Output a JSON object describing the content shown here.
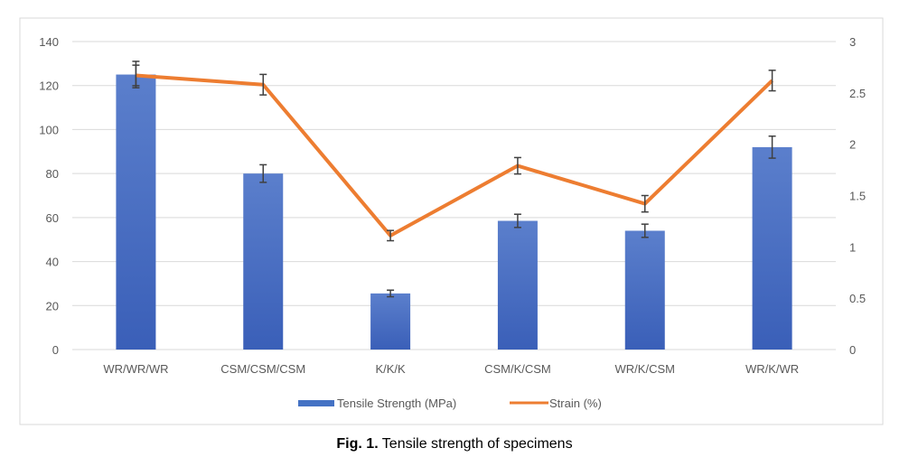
{
  "chart_data": {
    "type": "bar+line",
    "title": "",
    "caption": {
      "label": "Fig. 1.",
      "text": " Tensile strength of specimens"
    },
    "categories": [
      "WR/WR/WR",
      "CSM/CSM/CSM",
      "K/K/K",
      "CSM/K/CSM",
      "WR/K/CSM",
      "WR/K/WR"
    ],
    "left_axis": {
      "ylim": [
        0,
        140
      ],
      "ticks": [
        "0",
        "20",
        "40",
        "60",
        "80",
        "100",
        "120",
        "140"
      ]
    },
    "right_axis": {
      "ylim": [
        0,
        3
      ],
      "ticks": [
        "0",
        "0.5",
        "1",
        "1.5",
        "2",
        "2.5",
        "3"
      ]
    },
    "grid": true,
    "legend_position": "bottom",
    "series": [
      {
        "name": "Tensile Strength (MPa)",
        "type": "bar",
        "axis": "left",
        "color": "#4472C4",
        "values": [
          125,
          80,
          25.5,
          58.5,
          54,
          92
        ],
        "errors": [
          6,
          4,
          1.5,
          3,
          3,
          5
        ]
      },
      {
        "name": "Strain (%)",
        "type": "line",
        "axis": "right",
        "color": "#ED7D31",
        "values": [
          2.67,
          2.58,
          1.11,
          1.79,
          1.42,
          2.62
        ],
        "errors": [
          0.1,
          0.1,
          0.05,
          0.08,
          0.08,
          0.1
        ]
      }
    ]
  }
}
